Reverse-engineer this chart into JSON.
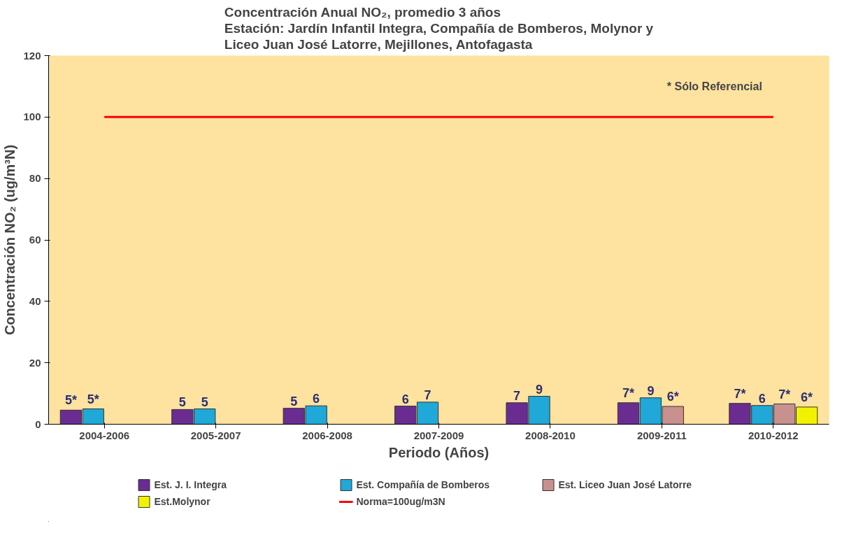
{
  "chart_data": {
    "type": "bar",
    "title": "Concentración Anual NO₂, promedio 3 años\nEstación: Jardín Infantil Integra, Compañía de Bomberos, Molynor y\nLiceo Juan José Latorre, Mejillones, Antofagasta",
    "xlabel": "Periodo (Años)",
    "ylabel": "Concentración NO₂ (ug/m³N)",
    "categories": [
      "2004-2006",
      "2005-2007",
      "2006-2008",
      "2007-2009",
      "2008-2010",
      "2009-2011",
      "2010-2012"
    ],
    "series": [
      {
        "name": "Est. J. I. Integra",
        "color": "#6a2c91",
        "values": [
          4.6,
          4.8,
          5.2,
          5.9,
          7.0,
          7.0,
          6.8
        ],
        "value_labels": [
          "5*",
          "5",
          "5",
          "6",
          "7",
          "7*",
          "7*"
        ]
      },
      {
        "name": "Est. Compañía de Bomberos",
        "color": "#1fa8d8",
        "values": [
          5.0,
          5.0,
          6.0,
          7.2,
          9.1,
          8.6,
          6.1
        ],
        "value_labels": [
          "5*",
          "5",
          "6",
          "7",
          "9",
          "9",
          "6"
        ]
      },
      {
        "name": "Est. Liceo Juan José Latorre",
        "color": "#c99090",
        "values": [
          null,
          null,
          null,
          null,
          null,
          5.8,
          6.6
        ],
        "value_labels": [
          null,
          null,
          null,
          null,
          null,
          "6*",
          "7*"
        ]
      },
      {
        "name": "Est.Molynor",
        "color": "#f2f200",
        "values": [
          null,
          null,
          null,
          null,
          null,
          null,
          5.6
        ],
        "value_labels": [
          null,
          null,
          null,
          null,
          null,
          null,
          "6*"
        ]
      }
    ],
    "ref_lines": [
      {
        "axis": "y",
        "value": 100,
        "label": "Norma=100ug/m3N",
        "color": "#ff0000"
      }
    ],
    "annotations": [
      "* Sólo Referencial"
    ],
    "ylim": [
      0,
      120
    ],
    "yticks": [
      0,
      20,
      40,
      60,
      80,
      100,
      120
    ],
    "grid": false,
    "legend": "bottom"
  }
}
